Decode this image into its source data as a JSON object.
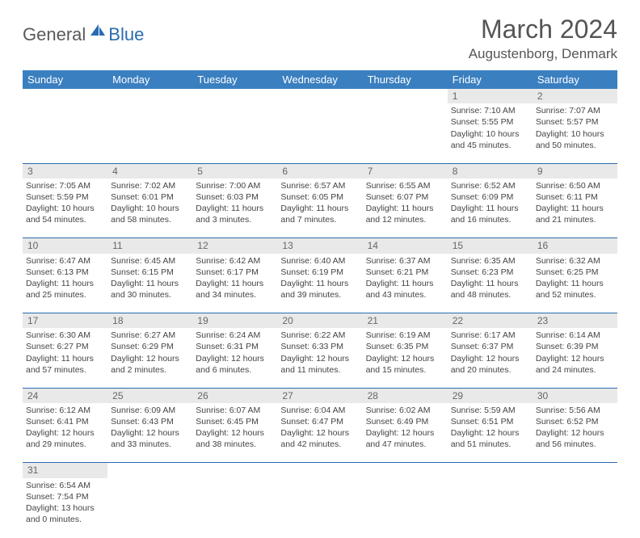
{
  "logo": {
    "general": "General",
    "blue": "Blue"
  },
  "header": {
    "month": "March 2024",
    "location": "Augustenborg, Denmark"
  },
  "colors": {
    "header_bg": "#3a7fc0",
    "header_text": "#ffffff",
    "daynum_bg": "#e9e9e9",
    "cell_border": "#2a6bb0",
    "text": "#444444",
    "logo_gray": "#5a5a5a",
    "logo_blue": "#2a6bb0"
  },
  "weekdays": [
    "Sunday",
    "Monday",
    "Tuesday",
    "Wednesday",
    "Thursday",
    "Friday",
    "Saturday"
  ],
  "weeks": [
    [
      null,
      null,
      null,
      null,
      null,
      {
        "n": "1",
        "sr": "Sunrise: 7:10 AM",
        "ss": "Sunset: 5:55 PM",
        "dl": "Daylight: 10 hours and 45 minutes."
      },
      {
        "n": "2",
        "sr": "Sunrise: 7:07 AM",
        "ss": "Sunset: 5:57 PM",
        "dl": "Daylight: 10 hours and 50 minutes."
      }
    ],
    [
      {
        "n": "3",
        "sr": "Sunrise: 7:05 AM",
        "ss": "Sunset: 5:59 PM",
        "dl": "Daylight: 10 hours and 54 minutes."
      },
      {
        "n": "4",
        "sr": "Sunrise: 7:02 AM",
        "ss": "Sunset: 6:01 PM",
        "dl": "Daylight: 10 hours and 58 minutes."
      },
      {
        "n": "5",
        "sr": "Sunrise: 7:00 AM",
        "ss": "Sunset: 6:03 PM",
        "dl": "Daylight: 11 hours and 3 minutes."
      },
      {
        "n": "6",
        "sr": "Sunrise: 6:57 AM",
        "ss": "Sunset: 6:05 PM",
        "dl": "Daylight: 11 hours and 7 minutes."
      },
      {
        "n": "7",
        "sr": "Sunrise: 6:55 AM",
        "ss": "Sunset: 6:07 PM",
        "dl": "Daylight: 11 hours and 12 minutes."
      },
      {
        "n": "8",
        "sr": "Sunrise: 6:52 AM",
        "ss": "Sunset: 6:09 PM",
        "dl": "Daylight: 11 hours and 16 minutes."
      },
      {
        "n": "9",
        "sr": "Sunrise: 6:50 AM",
        "ss": "Sunset: 6:11 PM",
        "dl": "Daylight: 11 hours and 21 minutes."
      }
    ],
    [
      {
        "n": "10",
        "sr": "Sunrise: 6:47 AM",
        "ss": "Sunset: 6:13 PM",
        "dl": "Daylight: 11 hours and 25 minutes."
      },
      {
        "n": "11",
        "sr": "Sunrise: 6:45 AM",
        "ss": "Sunset: 6:15 PM",
        "dl": "Daylight: 11 hours and 30 minutes."
      },
      {
        "n": "12",
        "sr": "Sunrise: 6:42 AM",
        "ss": "Sunset: 6:17 PM",
        "dl": "Daylight: 11 hours and 34 minutes."
      },
      {
        "n": "13",
        "sr": "Sunrise: 6:40 AM",
        "ss": "Sunset: 6:19 PM",
        "dl": "Daylight: 11 hours and 39 minutes."
      },
      {
        "n": "14",
        "sr": "Sunrise: 6:37 AM",
        "ss": "Sunset: 6:21 PM",
        "dl": "Daylight: 11 hours and 43 minutes."
      },
      {
        "n": "15",
        "sr": "Sunrise: 6:35 AM",
        "ss": "Sunset: 6:23 PM",
        "dl": "Daylight: 11 hours and 48 minutes."
      },
      {
        "n": "16",
        "sr": "Sunrise: 6:32 AM",
        "ss": "Sunset: 6:25 PM",
        "dl": "Daylight: 11 hours and 52 minutes."
      }
    ],
    [
      {
        "n": "17",
        "sr": "Sunrise: 6:30 AM",
        "ss": "Sunset: 6:27 PM",
        "dl": "Daylight: 11 hours and 57 minutes."
      },
      {
        "n": "18",
        "sr": "Sunrise: 6:27 AM",
        "ss": "Sunset: 6:29 PM",
        "dl": "Daylight: 12 hours and 2 minutes."
      },
      {
        "n": "19",
        "sr": "Sunrise: 6:24 AM",
        "ss": "Sunset: 6:31 PM",
        "dl": "Daylight: 12 hours and 6 minutes."
      },
      {
        "n": "20",
        "sr": "Sunrise: 6:22 AM",
        "ss": "Sunset: 6:33 PM",
        "dl": "Daylight: 12 hours and 11 minutes."
      },
      {
        "n": "21",
        "sr": "Sunrise: 6:19 AM",
        "ss": "Sunset: 6:35 PM",
        "dl": "Daylight: 12 hours and 15 minutes."
      },
      {
        "n": "22",
        "sr": "Sunrise: 6:17 AM",
        "ss": "Sunset: 6:37 PM",
        "dl": "Daylight: 12 hours and 20 minutes."
      },
      {
        "n": "23",
        "sr": "Sunrise: 6:14 AM",
        "ss": "Sunset: 6:39 PM",
        "dl": "Daylight: 12 hours and 24 minutes."
      }
    ],
    [
      {
        "n": "24",
        "sr": "Sunrise: 6:12 AM",
        "ss": "Sunset: 6:41 PM",
        "dl": "Daylight: 12 hours and 29 minutes."
      },
      {
        "n": "25",
        "sr": "Sunrise: 6:09 AM",
        "ss": "Sunset: 6:43 PM",
        "dl": "Daylight: 12 hours and 33 minutes."
      },
      {
        "n": "26",
        "sr": "Sunrise: 6:07 AM",
        "ss": "Sunset: 6:45 PM",
        "dl": "Daylight: 12 hours and 38 minutes."
      },
      {
        "n": "27",
        "sr": "Sunrise: 6:04 AM",
        "ss": "Sunset: 6:47 PM",
        "dl": "Daylight: 12 hours and 42 minutes."
      },
      {
        "n": "28",
        "sr": "Sunrise: 6:02 AM",
        "ss": "Sunset: 6:49 PM",
        "dl": "Daylight: 12 hours and 47 minutes."
      },
      {
        "n": "29",
        "sr": "Sunrise: 5:59 AM",
        "ss": "Sunset: 6:51 PM",
        "dl": "Daylight: 12 hours and 51 minutes."
      },
      {
        "n": "30",
        "sr": "Sunrise: 5:56 AM",
        "ss": "Sunset: 6:52 PM",
        "dl": "Daylight: 12 hours and 56 minutes."
      }
    ],
    [
      {
        "n": "31",
        "sr": "Sunrise: 6:54 AM",
        "ss": "Sunset: 7:54 PM",
        "dl": "Daylight: 13 hours and 0 minutes."
      },
      null,
      null,
      null,
      null,
      null,
      null
    ]
  ]
}
